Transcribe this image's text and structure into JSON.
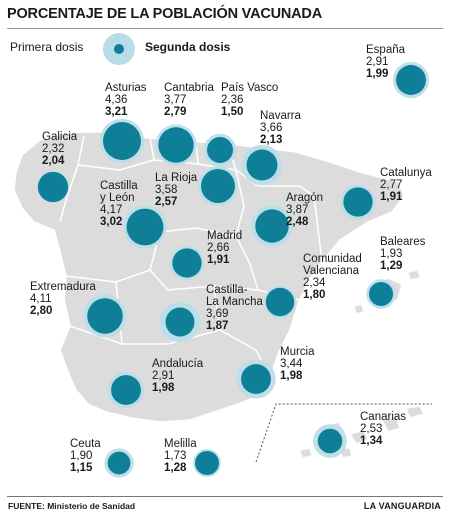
{
  "title": "PORCENTAJE DE LA POBLACIÓN VACUNADA",
  "legend": {
    "first": "Primera dosis",
    "second": "Segunda dosis"
  },
  "colors": {
    "first_dose": "#b7dde8",
    "second_dose": "#0f7f97",
    "land": "#dcdcdc",
    "border": "#ffffff",
    "ink": "#1a1a1a"
  },
  "regions": {
    "espana": {
      "name": "España",
      "first": "2,91",
      "second": "1,99"
    },
    "asturias": {
      "name": "Asturias",
      "first": "4,36",
      "second": "3,21"
    },
    "cantabria": {
      "name": "Cantabria",
      "first": "3,77",
      "second": "2,79"
    },
    "paisvasco": {
      "name": "País Vasco",
      "first": "2,36",
      "second": "1,50"
    },
    "navarra": {
      "name": "Navarra",
      "first": "3,66",
      "second": "2,13"
    },
    "galicia": {
      "name": "Galicia",
      "first": "2,32",
      "second": "2,04"
    },
    "larioja": {
      "name": "La Rioja",
      "first": "3,58",
      "second": "2,57"
    },
    "catalunya": {
      "name": "Catalunya",
      "first": "2,77",
      "second": "1,91"
    },
    "castillaleon": {
      "name1": "Castilla",
      "name2": "y León",
      "first": "4,17",
      "second": "3,02"
    },
    "aragon": {
      "name": "Aragón",
      "first": "3,87",
      "second": "2,48"
    },
    "madrid": {
      "name": "Madrid",
      "first": "2,66",
      "second": "1,91"
    },
    "baleares": {
      "name": "Baleares",
      "first": "1,93",
      "second": "1,29"
    },
    "extremadura": {
      "name": "Extremadura",
      "first": "4,11",
      "second": "2,80"
    },
    "castillamancha": {
      "name1": "Castilla-",
      "name2": "La Mancha",
      "first": "3,69",
      "second": "1,87"
    },
    "valenciana": {
      "name1": "Comunidad",
      "name2": "Valenciana",
      "first": "2,34",
      "second": "1,80"
    },
    "andalucia": {
      "name": "Andalucía",
      "first": "2,91",
      "second": "1,98"
    },
    "murcia": {
      "name": "Murcia",
      "first": "3,44",
      "second": "1,98"
    },
    "canarias": {
      "name": "Canarias",
      "first": "2,53",
      "second": "1,34"
    },
    "ceuta": {
      "name": "Ceuta",
      "first": "1,90",
      "second": "1,15"
    },
    "melilla": {
      "name": "Melilla",
      "first": "1,73",
      "second": "1,28"
    }
  },
  "footer": {
    "source_label": "FUENTE:",
    "source": "Ministerio de Sanidad",
    "brand": "LA VANGUARDIA"
  }
}
